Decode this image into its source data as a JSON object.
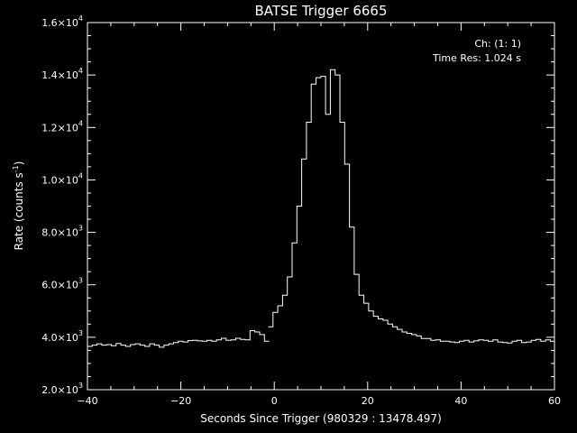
{
  "chart_data": {
    "type": "line",
    "step": true,
    "title": "BATSE Trigger 6665",
    "xlabel": "Seconds Since Trigger (980329 : 13478.497)",
    "ylabel_base": "Rate (counts s",
    "ylabel_sup": "-1",
    "ylabel_close": ")",
    "annotations": [
      "Ch: (1: 1)",
      "Time Res: 1.024 s"
    ],
    "xlim": [
      -40,
      60
    ],
    "ylim": [
      2000,
      16000
    ],
    "x_ticks": [
      -40,
      -20,
      0,
      20,
      40,
      60
    ],
    "x_tick_labels": [
      "−40",
      "−20",
      "0",
      "20",
      "40",
      "60"
    ],
    "y_ticks": [
      {
        "value": 2000,
        "mantissa": "2.0×10",
        "exp": "3"
      },
      {
        "value": 4000,
        "mantissa": "4.0×10",
        "exp": "3"
      },
      {
        "value": 6000,
        "mantissa": "6.0×10",
        "exp": "3"
      },
      {
        "value": 8000,
        "mantissa": "8.0×10",
        "exp": "3"
      },
      {
        "value": 10000,
        "mantissa": "1.0×10",
        "exp": "4"
      },
      {
        "value": 12000,
        "mantissa": "1.2×10",
        "exp": "4"
      },
      {
        "value": 14000,
        "mantissa": "1.4×10",
        "exp": "4"
      },
      {
        "value": 16000,
        "mantissa": "1.6×10",
        "exp": "4"
      }
    ],
    "grid": false,
    "colors": {
      "background": "#000000",
      "foreground": "#ffffff"
    },
    "segments": [
      {
        "bin_width": 1.024,
        "x": [
          -40.0,
          -38.976,
          -37.952,
          -36.928,
          -35.904,
          -34.88,
          -33.856,
          -32.832,
          -31.808,
          -30.784,
          -29.76,
          -28.736,
          -27.712,
          -26.688,
          -25.664,
          -24.64,
          -23.616,
          -22.592,
          -21.568,
          -20.544,
          -19.52,
          -18.496,
          -17.472,
          -16.448,
          -15.424,
          -14.4,
          -13.376,
          -12.352,
          -11.328,
          -10.304,
          -9.28,
          -8.256,
          -7.232,
          -6.208,
          -5.184,
          -4.16,
          -3.136,
          -2.112
        ],
        "y": [
          3650,
          3700,
          3750,
          3700,
          3720,
          3680,
          3760,
          3700,
          3650,
          3720,
          3750,
          3700,
          3650,
          3750,
          3700,
          3620,
          3700,
          3750,
          3800,
          3850,
          3820,
          3870,
          3880,
          3860,
          3850,
          3880,
          3850,
          3900,
          3960,
          3880,
          3900,
          3960,
          3920,
          3900,
          4250,
          4200,
          4100,
          3850
        ]
      },
      {
        "bin_width": 1.024,
        "x": [
          -1.3,
          -0.276,
          0.748,
          1.772,
          2.796,
          3.82,
          4.844,
          5.868,
          6.892,
          7.916,
          8.94,
          9.964,
          10.988,
          12.012,
          13.036,
          14.06,
          15.084,
          16.108,
          17.132,
          18.156,
          19.18,
          20.204,
          21.228,
          22.252,
          23.276,
          24.3,
          25.324,
          26.348,
          27.372,
          28.396,
          29.42,
          30.444,
          31.468,
          32.492,
          33.516,
          34.54,
          35.564,
          36.588,
          37.612,
          38.636,
          39.66,
          40.684,
          41.708,
          42.732,
          43.756,
          44.78,
          45.804,
          46.828,
          47.852,
          48.876,
          49.9,
          50.924,
          51.948,
          52.972,
          53.996,
          55.02,
          56.044,
          57.068,
          58.092,
          59.116
        ],
        "y": [
          4400,
          4950,
          5200,
          5600,
          6300,
          7600,
          9000,
          10800,
          12200,
          13650,
          13900,
          13950,
          12500,
          14200,
          14000,
          12200,
          10600,
          8200,
          6400,
          5600,
          5300,
          5000,
          4800,
          4700,
          4650,
          4500,
          4400,
          4300,
          4200,
          4150,
          4100,
          4050,
          3950,
          3950,
          3880,
          3900,
          3850,
          3850,
          3820,
          3800,
          3850,
          3880,
          3820,
          3860,
          3900,
          3880,
          3850,
          3900,
          3820,
          3800,
          3780,
          3850,
          3880,
          3800,
          3820,
          3880,
          3920,
          3850,
          3900,
          3850
        ]
      }
    ]
  }
}
